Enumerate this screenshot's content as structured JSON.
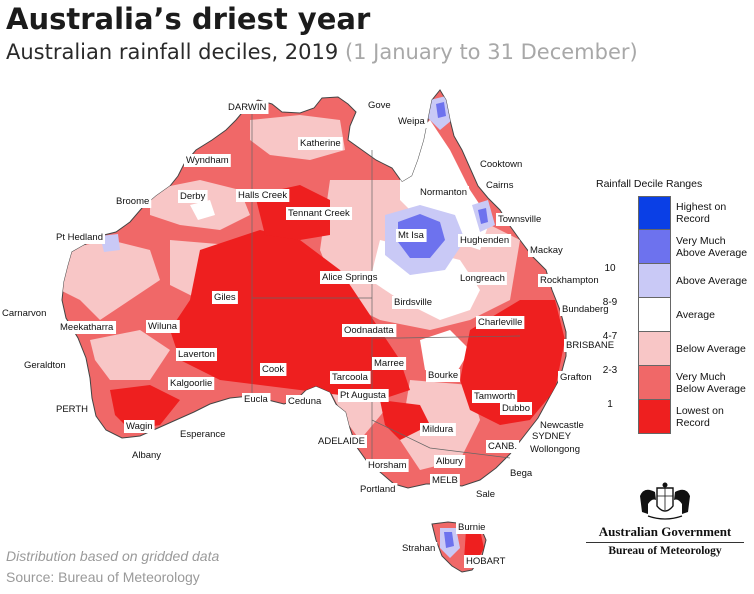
{
  "title": "Australia’s driest year",
  "subtitle": {
    "main": "Australian rainfall deciles, 2019",
    "dates": "(1 January to 31 December)"
  },
  "legend": {
    "title": "Rainfall Decile Ranges",
    "ranges": [
      {
        "decile": "",
        "label_line1": "Highest on",
        "label_line2": "Record",
        "color": "#0a3fe6"
      },
      {
        "decile": "10",
        "label_line1": "Very Much",
        "label_line2": "Above Average",
        "color": "#6d72ee"
      },
      {
        "decile": "8-9",
        "label_line1": "Above Average",
        "label_line2": "",
        "color": "#c9c9f6"
      },
      {
        "decile": "4-7",
        "label_line1": "Average",
        "label_line2": "",
        "color": "#ffffff"
      },
      {
        "decile": "2-3",
        "label_line1": "Below Average",
        "label_line2": "",
        "color": "#f8c6c6"
      },
      {
        "decile": "1",
        "label_line1": "Very Much",
        "label_line2": "Below Average",
        "color": "#f06868"
      },
      {
        "decile": "",
        "label_line1": "Lowest on",
        "label_line2": "Record",
        "color": "#ee1f1f"
      }
    ]
  },
  "towns": {
    "darwin": "DARWIN",
    "gove": "Gove",
    "weipa": "Weipa",
    "katherine": "Katherine",
    "cooktown": "Cooktown",
    "cairns": "Cairns",
    "wyndham": "Wyndham",
    "normanton": "Normanton",
    "broome": "Broome",
    "derby": "Derby",
    "halls_creek": "Halls Creek",
    "townsville": "Townsville",
    "tennant_creek": "Tennant Creek",
    "pt_hedland": "Pt Hedland",
    "mt_isa": "Mt Isa",
    "hughenden": "Hughenden",
    "mackay": "Mackay",
    "rockhampton": "Rockhampton",
    "alice_springs": "Alice Springs",
    "longreach": "Longreach",
    "giles": "Giles",
    "birdsville": "Birdsville",
    "bundaberg": "Bundaberg",
    "carnarvon": "Carnarvon",
    "meekatharra": "Meekatharra",
    "wiluna": "Wiluna",
    "oodnadatta": "Oodnadatta",
    "charleville": "Charleville",
    "brisbane": "BRISBANE",
    "laverton": "Laverton",
    "geraldton": "Geraldton",
    "marree": "Marree",
    "bourke": "Bourke",
    "grafton": "Grafton",
    "cook": "Cook",
    "tarcoola": "Tarcoola",
    "kalgoorlie": "Kalgoorlie",
    "perth": "PERTH",
    "pt_augusta": "Pt Augusta",
    "eucla": "Eucla",
    "ceduna": "Ceduna",
    "tamworth": "Tamworth",
    "dubbo": "Dubbo",
    "newcastle": "Newcastle",
    "sydney": "SYDNEY",
    "wagin": "Wagin",
    "esperance": "Esperance",
    "mildura": "Mildura",
    "wollongong": "Wollongong",
    "adelaide": "ADELAIDE",
    "canb": "CANB.",
    "albany": "Albany",
    "horsham": "Horsham",
    "albury": "Albury",
    "bega": "Bega",
    "portland": "Portland",
    "melb": "MELB",
    "sale": "Sale",
    "burnie": "Burnie",
    "strahan": "Strahan",
    "hobart": "HOBART"
  },
  "footnote": "Distribution based on gridded data",
  "source": "Source: Bureau of Meteorology",
  "agency": {
    "government": "Australian Government",
    "bureau": "Bureau of Meteorology"
  }
}
